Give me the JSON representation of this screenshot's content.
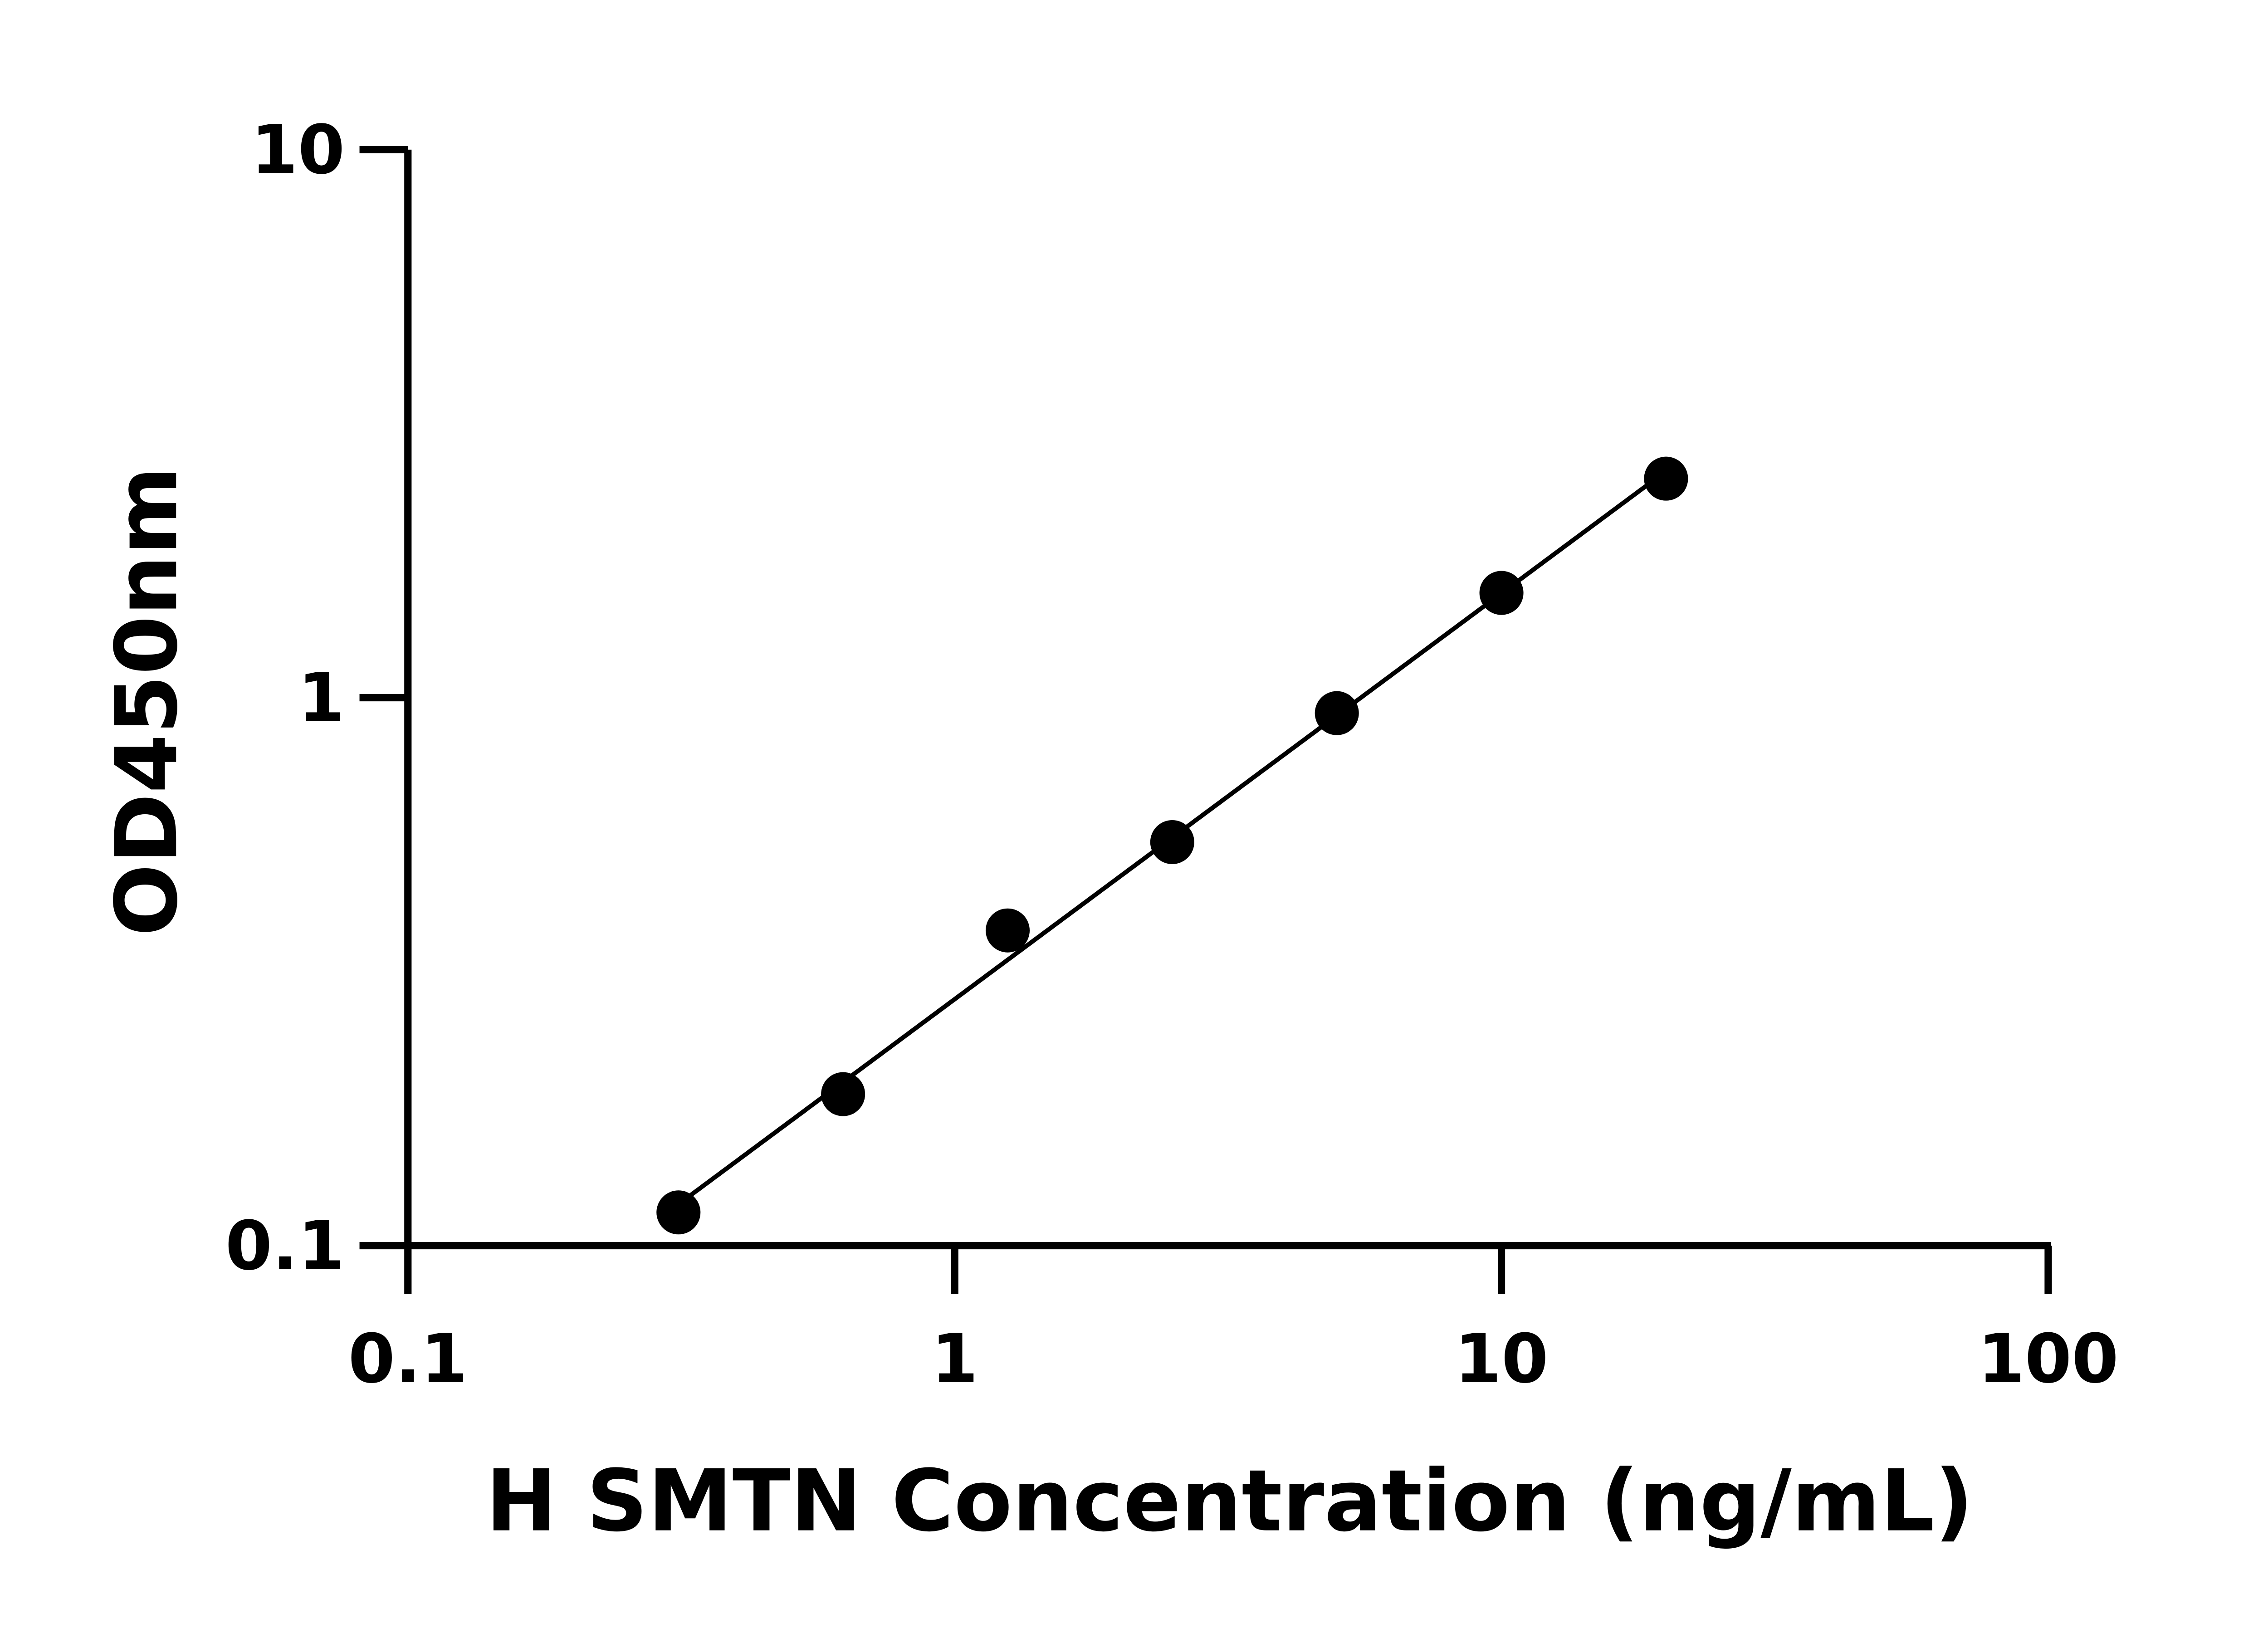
{
  "chart_data": {
    "type": "scatter",
    "title": "",
    "xlabel": "H SMTN Concentration (ng/mL)",
    "ylabel": "OD450nm",
    "x_scale": "log",
    "y_scale": "log",
    "xlim": [
      0.1,
      100
    ],
    "ylim": [
      0.1,
      10
    ],
    "x_ticks": [
      "0.1",
      "1",
      "10",
      "100"
    ],
    "y_ticks": [
      "0.1",
      "1",
      "10"
    ],
    "grid": false,
    "fit_line": "log-log linear",
    "marker_color": "#000000",
    "x": [
      0.3125,
      0.625,
      1.25,
      2.5,
      5,
      10,
      20
    ],
    "y": [
      0.115,
      0.189,
      0.376,
      0.545,
      0.937,
      1.553,
      2.51
    ]
  }
}
